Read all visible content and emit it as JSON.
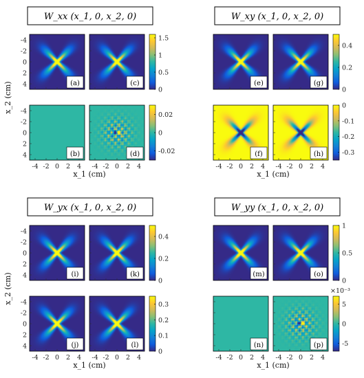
{
  "colors": {
    "colormap": [
      "#352a87",
      "#0f5cdd",
      "#1481d6",
      "#06a4ca",
      "#2eb7a4",
      "#87bf77",
      "#d1bb59",
      "#fec832",
      "#f9fb0e"
    ]
  },
  "chart_data": [
    {
      "type": "heatmap",
      "group": "Wxx",
      "title": "W_xx (x_1, 0, x_2, 0)",
      "xlabel": "x_1 (cm)",
      "ylabel": "x_2 (cm)",
      "x_ticks": [
        "-4",
        "-2",
        "0",
        "2",
        "4"
      ],
      "y_ticks": [
        "-4",
        "-2",
        "0",
        "2",
        "4"
      ],
      "xlim": [
        -5,
        5
      ],
      "ylim": [
        -5,
        5
      ],
      "panels": [
        {
          "label": "(a)",
          "kind": "x",
          "peak": 1.5
        },
        {
          "label": "(c)",
          "kind": "x",
          "peak": 1.5
        },
        {
          "label": "(b)",
          "kind": "flat",
          "peak": 0
        },
        {
          "label": "(d)",
          "kind": "speckle",
          "peak": 0.02
        }
      ],
      "colorbars": [
        {
          "ticks": [
            "1.5",
            "1",
            "0.5",
            "0"
          ],
          "range": [
            0,
            1.6
          ]
        },
        {
          "ticks": [
            "0.02",
            "0",
            "-0.02"
          ],
          "range": [
            -0.03,
            0.03
          ]
        }
      ]
    },
    {
      "type": "heatmap",
      "group": "Wxy",
      "title": "W_xy (x_1, 0, x_2, 0)",
      "xlabel": "x_1 (cm)",
      "x_ticks": [
        "-4",
        "-2",
        "0",
        "2",
        "4"
      ],
      "xlim": [
        -5,
        5
      ],
      "ylim": [
        -5,
        5
      ],
      "panels": [
        {
          "label": "(e)",
          "kind": "x",
          "peak": 0.5
        },
        {
          "label": "(g)",
          "kind": "x",
          "peak": 0.5
        },
        {
          "label": "(f)",
          "kind": "negx",
          "peak": -0.35
        },
        {
          "label": "(h)",
          "kind": "negx",
          "peak": -0.35
        }
      ],
      "colorbars": [
        {
          "ticks": [
            "0.4",
            "0.2",
            "0"
          ],
          "range": [
            0,
            0.5
          ]
        },
        {
          "ticks": [
            "0",
            "-0.1",
            "-0.2",
            "-0.3"
          ],
          "range": [
            -0.35,
            0
          ]
        }
      ]
    },
    {
      "type": "heatmap",
      "group": "Wyx",
      "title": "W_yx (x_1, 0, x_2, 0)",
      "xlabel": "x_1 (cm)",
      "ylabel": "x_2 (cm)",
      "x_ticks": [
        "-4",
        "-2",
        "0",
        "2",
        "4"
      ],
      "y_ticks": [
        "-4",
        "-2",
        "0",
        "2",
        "4"
      ],
      "xlim": [
        -5,
        5
      ],
      "ylim": [
        -5,
        5
      ],
      "panels": [
        {
          "label": "(i)",
          "kind": "x",
          "peak": 0.5
        },
        {
          "label": "(k)",
          "kind": "x",
          "peak": 0.5
        },
        {
          "label": "(j)",
          "kind": "x",
          "peak": 0.35
        },
        {
          "label": "(l)",
          "kind": "x",
          "peak": 0.35
        }
      ],
      "colorbars": [
        {
          "ticks": [
            "0.4",
            "0.2",
            "0"
          ],
          "range": [
            0,
            0.5
          ]
        },
        {
          "ticks": [
            "0.3",
            "0.2",
            "0.1",
            "0"
          ],
          "range": [
            0,
            0.35
          ]
        }
      ]
    },
    {
      "type": "heatmap",
      "group": "Wyy",
      "title": "W_yy (x_1, 0, x_2, 0)",
      "xlabel": "x_1 (cm)",
      "x_ticks": [
        "-4",
        "-2",
        "0",
        "2",
        "4"
      ],
      "xlim": [
        -5,
        5
      ],
      "ylim": [
        -5,
        5
      ],
      "panels": [
        {
          "label": "(m)",
          "kind": "x",
          "peak": 1
        },
        {
          "label": "(o)",
          "kind": "x",
          "peak": 1
        },
        {
          "label": "(n)",
          "kind": "flat",
          "peak": 0
        },
        {
          "label": "(p)",
          "kind": "speckle",
          "peak": 0.007
        }
      ],
      "colorbars": [
        {
          "ticks": [
            "1",
            "0.5",
            "0"
          ],
          "range": [
            0,
            1
          ]
        },
        {
          "ticks": [
            "5",
            "0",
            "-5"
          ],
          "range": [
            -0.007,
            0.007
          ],
          "exponent": "×10⁻³"
        }
      ]
    }
  ]
}
